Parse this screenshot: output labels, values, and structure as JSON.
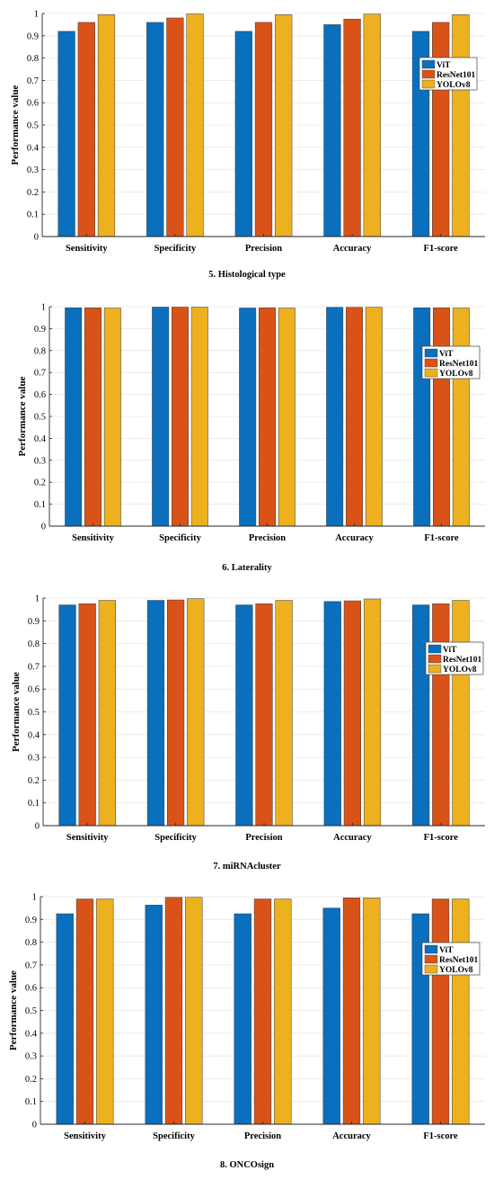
{
  "colors": {
    "vit": "#0a6fbd",
    "resnet": "#d95319",
    "yolo": "#edb120"
  },
  "chart_data": [
    {
      "type": "bar",
      "caption": "5. Histological type",
      "ylabel": "Performance value",
      "ylim": [
        0,
        1
      ],
      "yticks": [
        "0",
        "0.1",
        "0.2",
        "0.3",
        "0.4",
        "0.5",
        "0.6",
        "0.7",
        "0.8",
        "0.9",
        "1"
      ],
      "categories": [
        "Sensitivity",
        "Specificity",
        "Precision",
        "Accuracy",
        "F1-score"
      ],
      "legend_position": "right",
      "series": [
        {
          "name": "ViT",
          "values": [
            0.92,
            0.96,
            0.92,
            0.95,
            0.92
          ]
        },
        {
          "name": "ResNet101",
          "values": [
            0.96,
            0.98,
            0.96,
            0.975,
            0.96
          ]
        },
        {
          "name": "YOLOv8",
          "values": [
            0.995,
            0.998,
            0.995,
            0.997,
            0.995
          ]
        }
      ]
    },
    {
      "type": "bar",
      "caption": "6. Laterality",
      "ylabel": "Performance value",
      "ylim": [
        0,
        1
      ],
      "yticks": [
        "0",
        "0.1",
        "0.2",
        "0.3",
        "0.4",
        "0.5",
        "0.6",
        "0.7",
        "0.8",
        "0.9",
        "1"
      ],
      "categories": [
        "Sensitivity",
        "Specificity",
        "Precision",
        "Accuracy",
        "F1-score"
      ],
      "legend_position": "right",
      "series": [
        {
          "name": "ViT",
          "values": [
            0.995,
            0.998,
            0.994,
            0.997,
            0.995
          ]
        },
        {
          "name": "ResNet101",
          "values": [
            0.995,
            0.998,
            0.995,
            0.997,
            0.995
          ]
        },
        {
          "name": "YOLOv8",
          "values": [
            0.994,
            0.998,
            0.994,
            0.997,
            0.994
          ]
        }
      ]
    },
    {
      "type": "bar",
      "caption": "7. miRNAcluster",
      "ylabel": "Performance value",
      "ylim": [
        0,
        1
      ],
      "yticks": [
        "0",
        "0.1",
        "0.2",
        "0.3",
        "0.4",
        "0.5",
        "0.6",
        "0.7",
        "0.8",
        "0.9",
        "1"
      ],
      "categories": [
        "Sensitivity",
        "Specificity",
        "Precision",
        "Accuracy",
        "F1-score"
      ],
      "legend_position": "right",
      "series": [
        {
          "name": "ViT",
          "values": [
            0.97,
            0.99,
            0.97,
            0.985,
            0.97
          ]
        },
        {
          "name": "ResNet101",
          "values": [
            0.975,
            0.992,
            0.975,
            0.988,
            0.975
          ]
        },
        {
          "name": "YOLOv8",
          "values": [
            0.99,
            0.997,
            0.99,
            0.996,
            0.99
          ]
        }
      ]
    },
    {
      "type": "bar",
      "caption": "8. ONCOsign",
      "ylabel": "Performance value",
      "ylim": [
        0,
        1
      ],
      "yticks": [
        "0",
        "0.1",
        "0.2",
        "0.3",
        "0.4",
        "0.5",
        "0.6",
        "0.7",
        "0.8",
        "0.9",
        "1"
      ],
      "categories": [
        "Sensitivity",
        "Specificity",
        "Precision",
        "Accuracy",
        "F1-score"
      ],
      "legend_position": "right",
      "series": [
        {
          "name": "ViT",
          "values": [
            0.925,
            0.963,
            0.925,
            0.95,
            0.925
          ]
        },
        {
          "name": "ResNet101",
          "values": [
            0.99,
            0.997,
            0.99,
            0.995,
            0.99
          ]
        },
        {
          "name": "YOLOv8",
          "values": [
            0.99,
            0.997,
            0.99,
            0.995,
            0.99
          ]
        }
      ]
    }
  ]
}
